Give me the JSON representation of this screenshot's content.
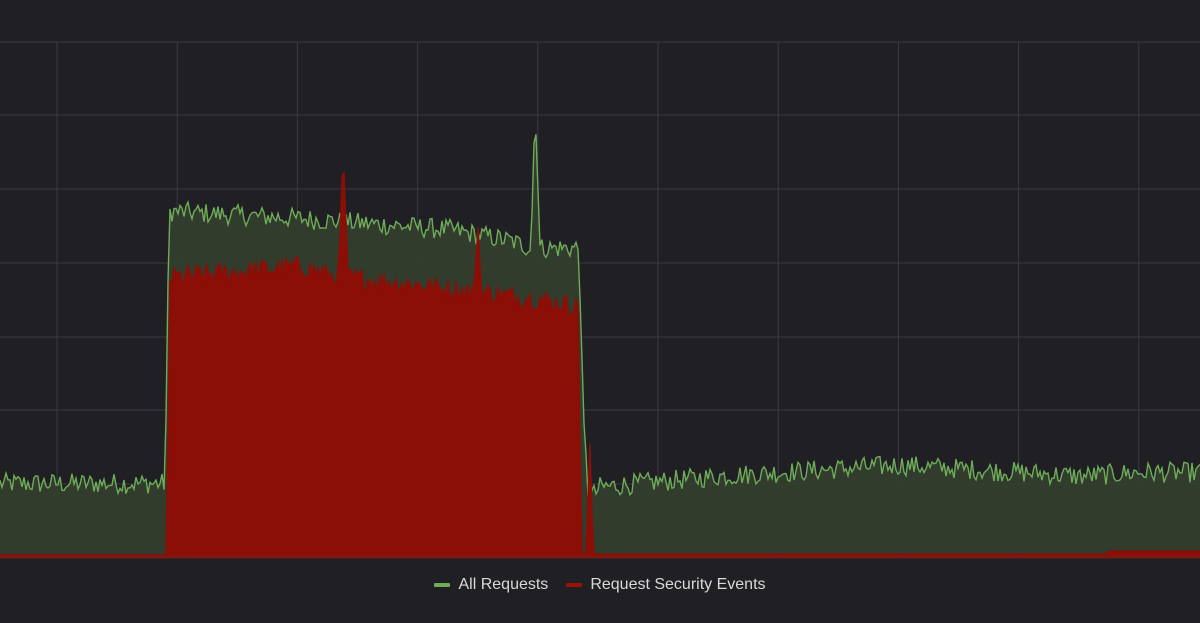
{
  "chart_data": {
    "type": "area",
    "title": "",
    "xlabel": "",
    "ylabel": "",
    "grid": true,
    "legend_position": "bottom",
    "x_range": [
      0,
      200
    ],
    "y_range": [
      0,
      700
    ],
    "series": [
      {
        "name": "All Requests",
        "color": "#6fac5a",
        "fill": "#333f2f",
        "x": [
          0,
          27.5,
          28.2,
          50,
          75,
          85,
          88.5,
          89.2,
          90,
          92,
          96.5,
          97.2,
          98,
          99,
          100,
          120,
          140,
          150,
          160,
          170,
          180,
          190,
          200
        ],
        "values": [
          100,
          100,
          470,
          460,
          445,
          430,
          420,
          620,
          420,
          420,
          420,
          190,
          90,
          85,
          95,
          110,
          120,
          125,
          120,
          115,
          110,
          115,
          115
        ]
      },
      {
        "name": "Request Security Events",
        "color": "#8b0f06",
        "fill": "#8b0f06",
        "x": [
          0,
          27.8,
          28.3,
          50,
          56.5,
          57.2,
          57.9,
          70,
          79,
          79.6,
          80.2,
          90,
          96.5,
          96.8,
          97.7,
          98.3,
          98.8,
          100,
          184,
          185,
          190,
          192,
          200
        ],
        "values": [
          3,
          3,
          380,
          395,
          380,
          560,
          380,
          370,
          360,
          460,
          360,
          350,
          340,
          5,
          5,
          160,
          5,
          4,
          4,
          8,
          8,
          8,
          8
        ]
      }
    ]
  }
}
